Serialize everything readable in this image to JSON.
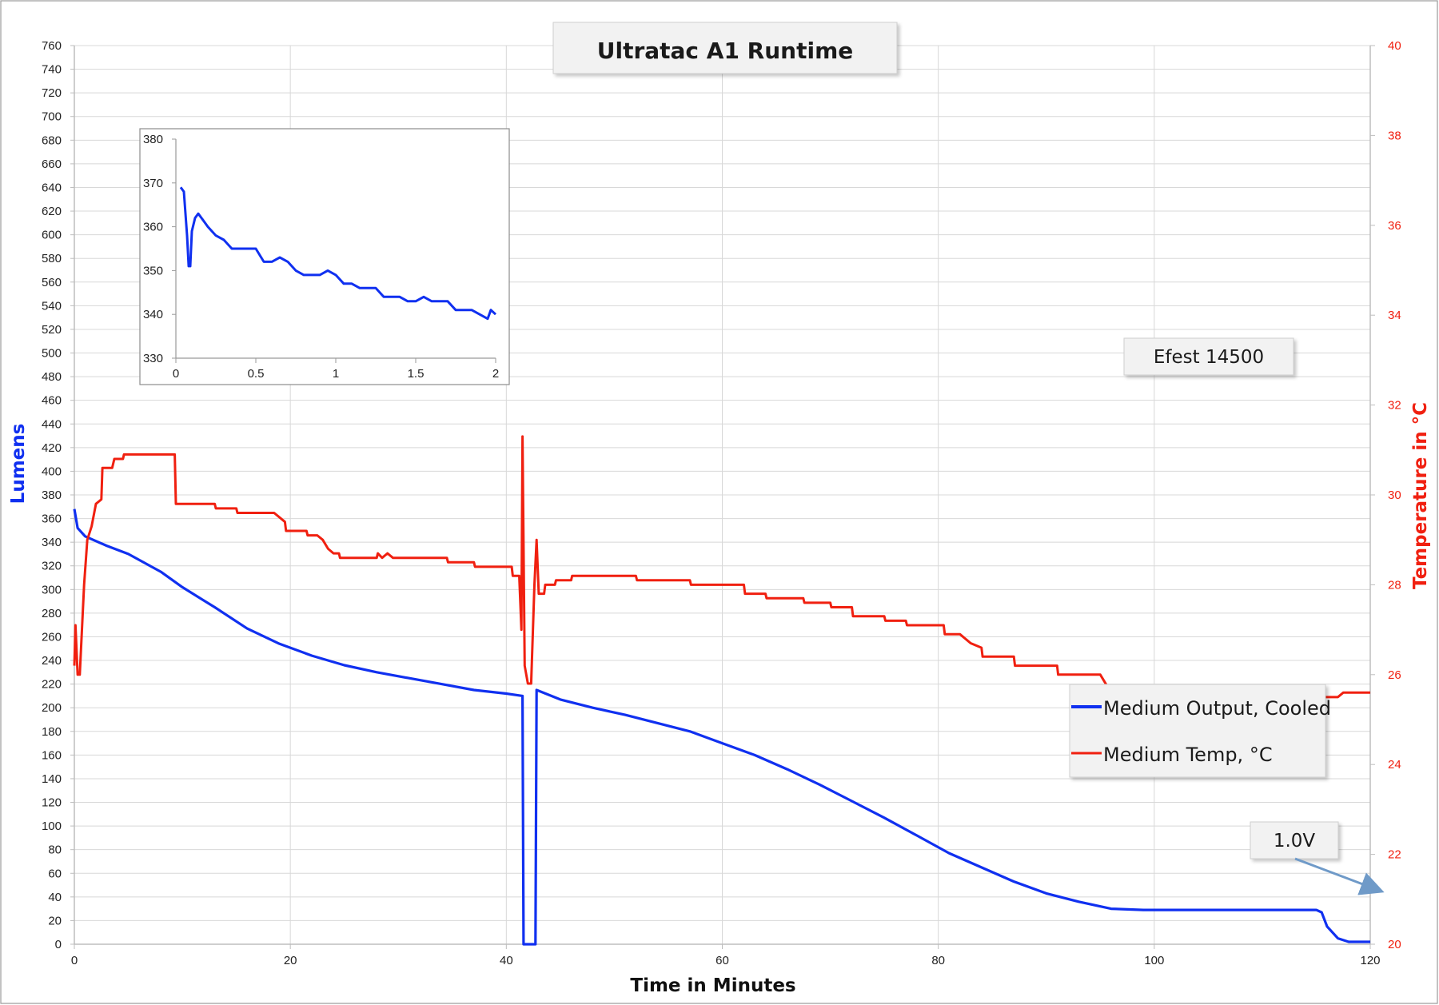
{
  "colors": {
    "lumens": "#1030f0",
    "temp": "#f02010",
    "grid": "#d8d8d8",
    "axis": "#bdbdbd",
    "arrow": "#6f9ac8"
  },
  "chart_data": {
    "type": "line",
    "title": "Ultratac A1 Runtime",
    "xlabel": "Time in Minutes",
    "ylabel": "Lumens",
    "y2label": "Temperature in °C",
    "xlim": [
      0,
      120
    ],
    "ylim": [
      0,
      760
    ],
    "y2lim": [
      20,
      40
    ],
    "x_ticks": [
      "0",
      "20",
      "40",
      "60",
      "80",
      "100",
      "120"
    ],
    "y_ticks": [
      "0",
      "20",
      "40",
      "60",
      "80",
      "100",
      "120",
      "140",
      "160",
      "180",
      "200",
      "220",
      "240",
      "260",
      "280",
      "300",
      "320",
      "340",
      "360",
      "380",
      "400",
      "420",
      "440",
      "460",
      "480",
      "500",
      "520",
      "540",
      "560",
      "580",
      "600",
      "620",
      "640",
      "660",
      "680",
      "700",
      "720",
      "740",
      "760"
    ],
    "y2_ticks": [
      "20",
      "22",
      "24",
      "26",
      "28",
      "30",
      "32",
      "34",
      "36",
      "38",
      "40"
    ],
    "grid": true,
    "legend_position": "right",
    "series": [
      {
        "name": "Medium Output, Cooled",
        "axis": "left",
        "points": [
          [
            0,
            368
          ],
          [
            0.3,
            352
          ],
          [
            1,
            345
          ],
          [
            3,
            337
          ],
          [
            5,
            330
          ],
          [
            8,
            315
          ],
          [
            10,
            302
          ],
          [
            13,
            285
          ],
          [
            16,
            267
          ],
          [
            19,
            254
          ],
          [
            22,
            244
          ],
          [
            25,
            236
          ],
          [
            28,
            230
          ],
          [
            31,
            225
          ],
          [
            34,
            220
          ],
          [
            37,
            215
          ],
          [
            40,
            212
          ],
          [
            41.5,
            210
          ],
          [
            41.6,
            0
          ],
          [
            42.7,
            0
          ],
          [
            42.8,
            215
          ],
          [
            45,
            207
          ],
          [
            48,
            200
          ],
          [
            51,
            194
          ],
          [
            54,
            187
          ],
          [
            57,
            180
          ],
          [
            60,
            170
          ],
          [
            63,
            160
          ],
          [
            66,
            148
          ],
          [
            69,
            135
          ],
          [
            72,
            121
          ],
          [
            75,
            107
          ],
          [
            78,
            92
          ],
          [
            81,
            77
          ],
          [
            84,
            65
          ],
          [
            87,
            53
          ],
          [
            90,
            43
          ],
          [
            93,
            36
          ],
          [
            96,
            30
          ],
          [
            99,
            29
          ],
          [
            105,
            29
          ],
          [
            110,
            29
          ],
          [
            115,
            29
          ],
          [
            115.5,
            27
          ],
          [
            116,
            15
          ],
          [
            117,
            5
          ],
          [
            118,
            2
          ],
          [
            120,
            2
          ]
        ]
      },
      {
        "name": "Medium Temp, °C",
        "axis": "right",
        "points": [
          [
            0,
            26.2
          ],
          [
            0.1,
            27.1
          ],
          [
            0.3,
            26
          ],
          [
            0.5,
            26
          ],
          [
            0.7,
            27
          ],
          [
            0.9,
            28
          ],
          [
            1.2,
            29
          ],
          [
            1.6,
            29.3
          ],
          [
            2,
            29.8
          ],
          [
            2.5,
            29.9
          ],
          [
            2.6,
            30.6
          ],
          [
            3.5,
            30.6
          ],
          [
            3.7,
            30.8
          ],
          [
            4.5,
            30.8
          ],
          [
            4.6,
            30.9
          ],
          [
            9.3,
            30.9
          ],
          [
            9.4,
            29.8
          ],
          [
            13,
            29.8
          ],
          [
            13.1,
            29.7
          ],
          [
            15,
            29.7
          ],
          [
            15.1,
            29.6
          ],
          [
            18.5,
            29.6
          ],
          [
            19.5,
            29.4
          ],
          [
            19.6,
            29.2
          ],
          [
            21.5,
            29.2
          ],
          [
            21.6,
            29.1
          ],
          [
            22.5,
            29.1
          ],
          [
            23,
            29
          ],
          [
            23.5,
            28.8
          ],
          [
            24,
            28.7
          ],
          [
            24.5,
            28.7
          ],
          [
            24.6,
            28.6
          ],
          [
            28,
            28.6
          ],
          [
            28.1,
            28.7
          ],
          [
            28.5,
            28.6
          ],
          [
            29,
            28.7
          ],
          [
            29.5,
            28.6
          ],
          [
            34.5,
            28.6
          ],
          [
            34.6,
            28.5
          ],
          [
            37,
            28.5
          ],
          [
            37.1,
            28.4
          ],
          [
            40.5,
            28.4
          ],
          [
            40.6,
            28.2
          ],
          [
            41.2,
            28.2
          ],
          [
            41.4,
            27
          ],
          [
            41.5,
            31.3
          ],
          [
            41.7,
            26.2
          ],
          [
            42,
            25.8
          ],
          [
            42.3,
            25.8
          ],
          [
            42.6,
            28
          ],
          [
            42.8,
            29
          ],
          [
            43,
            27.8
          ],
          [
            43.5,
            27.8
          ],
          [
            43.6,
            28
          ],
          [
            44.5,
            28
          ],
          [
            44.6,
            28.1
          ],
          [
            46,
            28.1
          ],
          [
            46.1,
            28.2
          ],
          [
            52,
            28.2
          ],
          [
            52.1,
            28.1
          ],
          [
            57,
            28.1
          ],
          [
            57.1,
            28
          ],
          [
            62,
            28
          ],
          [
            62.1,
            27.8
          ],
          [
            64,
            27.8
          ],
          [
            64.1,
            27.7
          ],
          [
            67.5,
            27.7
          ],
          [
            67.6,
            27.6
          ],
          [
            70,
            27.6
          ],
          [
            70.1,
            27.5
          ],
          [
            72,
            27.5
          ],
          [
            72.1,
            27.3
          ],
          [
            75,
            27.3
          ],
          [
            75.1,
            27.2
          ],
          [
            77,
            27.2
          ],
          [
            77.1,
            27.1
          ],
          [
            80.5,
            27.1
          ],
          [
            80.6,
            26.9
          ],
          [
            82,
            26.9
          ],
          [
            83,
            26.7
          ],
          [
            84,
            26.6
          ],
          [
            84.1,
            26.4
          ],
          [
            87,
            26.4
          ],
          [
            87.1,
            26.2
          ],
          [
            91,
            26.2
          ],
          [
            91.1,
            26
          ],
          [
            95,
            26
          ],
          [
            96,
            25.6
          ],
          [
            105,
            25.6
          ],
          [
            110,
            25.6
          ],
          [
            112,
            25.5
          ],
          [
            117,
            25.5
          ],
          [
            117.5,
            25.6
          ],
          [
            120,
            25.6
          ]
        ]
      }
    ],
    "inset": {
      "type": "line",
      "xlim": [
        0,
        2
      ],
      "ylim": [
        330,
        380
      ],
      "x_ticks": [
        "0",
        "0.5",
        "1",
        "1.5",
        "2"
      ],
      "y_ticks": [
        "330",
        "340",
        "350",
        "360",
        "370",
        "380"
      ],
      "points": [
        [
          0.03,
          369
        ],
        [
          0.05,
          368
        ],
        [
          0.07,
          358
        ],
        [
          0.08,
          351
        ],
        [
          0.09,
          351
        ],
        [
          0.1,
          359
        ],
        [
          0.12,
          362
        ],
        [
          0.14,
          363
        ],
        [
          0.16,
          362
        ],
        [
          0.2,
          360
        ],
        [
          0.25,
          358
        ],
        [
          0.3,
          357
        ],
        [
          0.35,
          355
        ],
        [
          0.4,
          355
        ],
        [
          0.5,
          355
        ],
        [
          0.55,
          352
        ],
        [
          0.6,
          352
        ],
        [
          0.65,
          353
        ],
        [
          0.7,
          352
        ],
        [
          0.75,
          350
        ],
        [
          0.8,
          349
        ],
        [
          0.85,
          349
        ],
        [
          0.9,
          349
        ],
        [
          0.95,
          350
        ],
        [
          1.0,
          349
        ],
        [
          1.05,
          347
        ],
        [
          1.1,
          347
        ],
        [
          1.15,
          346
        ],
        [
          1.2,
          346
        ],
        [
          1.25,
          346
        ],
        [
          1.3,
          344
        ],
        [
          1.4,
          344
        ],
        [
          1.45,
          343
        ],
        [
          1.5,
          343
        ],
        [
          1.55,
          344
        ],
        [
          1.6,
          343
        ],
        [
          1.7,
          343
        ],
        [
          1.75,
          341
        ],
        [
          1.8,
          341
        ],
        [
          1.85,
          341
        ],
        [
          1.9,
          340
        ],
        [
          1.95,
          339
        ],
        [
          1.97,
          341
        ],
        [
          2.0,
          340
        ]
      ]
    },
    "annotations": [
      {
        "id": "battery",
        "text": "Efest 14500"
      },
      {
        "id": "voltage",
        "text": "1.0V"
      }
    ]
  }
}
